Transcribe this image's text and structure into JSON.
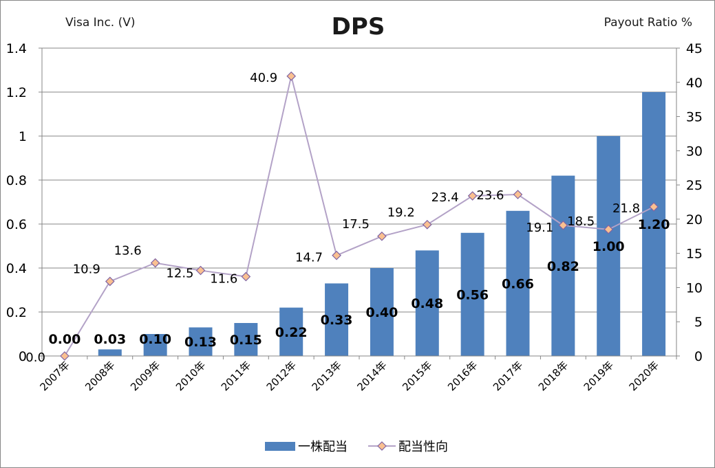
{
  "header": {
    "company": "Visa Inc. (V)",
    "title": "DPS",
    "right_axis_title": "Payout Ratio %"
  },
  "chart_data": {
    "type": "bar",
    "title": "DPS",
    "categories": [
      "2007年",
      "2008年",
      "2009年",
      "2010年",
      "2011年",
      "2012年",
      "2013年",
      "2014年",
      "2015年",
      "2016年",
      "2017年",
      "2018年",
      "2019年",
      "2020年"
    ],
    "series": [
      {
        "name": "一株配当",
        "type": "bar",
        "axis": "left",
        "color": "#4f81bd",
        "values": [
          0.0,
          0.03,
          0.1,
          0.13,
          0.15,
          0.22,
          0.33,
          0.4,
          0.48,
          0.56,
          0.66,
          0.82,
          1.0,
          1.2
        ],
        "labels": [
          "0.00",
          "0.03",
          "0.10",
          "0.13",
          "0.15",
          "0.22",
          "0.33",
          "0.40",
          "0.48",
          "0.56",
          "0.66",
          "0.82",
          "1.00",
          "1.20"
        ]
      },
      {
        "name": "配当性向",
        "type": "line",
        "axis": "right",
        "color": "#b3a2c7",
        "marker_color": "#fac090",
        "marker_edge": "#8064a2",
        "values": [
          0.0,
          10.9,
          13.6,
          12.5,
          11.6,
          40.9,
          14.7,
          17.5,
          19.2,
          23.4,
          23.6,
          19.1,
          18.5,
          21.8
        ],
        "labels": [
          "0.0",
          "10.9",
          "13.6",
          "12.5",
          "11.6",
          "40.9",
          "14.7",
          "17.5",
          "19.2",
          "23.4",
          "23.6",
          "19.1",
          "18.5",
          "21.8"
        ]
      }
    ],
    "y_left": {
      "label": "",
      "range": [
        0,
        1.4
      ],
      "ticks": [
        0,
        0.2,
        0.4,
        0.6,
        0.8,
        1,
        1.2,
        1.4
      ],
      "tick_labels": [
        "0",
        "0.2",
        "0.4",
        "0.6",
        "0.8",
        "1",
        "1.2",
        "1.4"
      ]
    },
    "y_right": {
      "label": "Payout Ratio %",
      "range": [
        0,
        45
      ],
      "ticks": [
        0,
        5,
        10,
        15,
        20,
        25,
        30,
        35,
        40,
        45
      ],
      "tick_labels": [
        "0",
        "5",
        "10",
        "15",
        "20",
        "25",
        "30",
        "35",
        "40",
        "45"
      ]
    },
    "grid": true,
    "legend_position": "bottom-center"
  }
}
